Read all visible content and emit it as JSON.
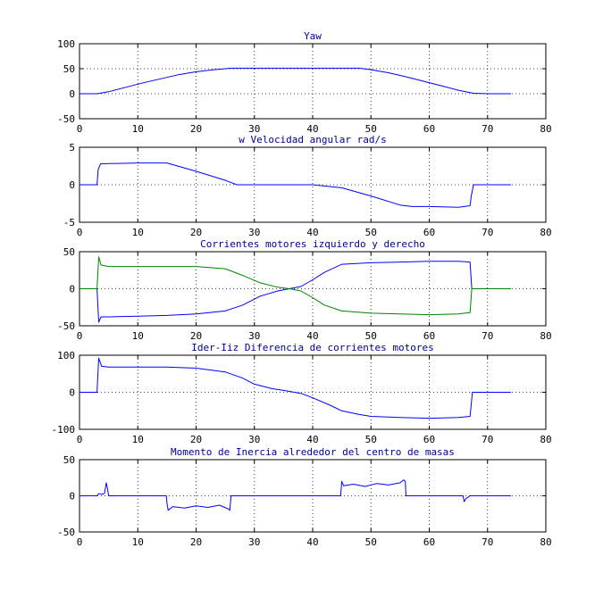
{
  "chart_data": [
    {
      "type": "line",
      "title": "Yaw",
      "xlabel": "",
      "ylabel": "",
      "xlim": [
        0,
        80
      ],
      "ylim": [
        -50,
        100
      ],
      "xticks": [
        0,
        10,
        20,
        30,
        40,
        50,
        60,
        70,
        80
      ],
      "yticks": [
        100,
        50,
        0,
        -50
      ],
      "grid": true,
      "series": [
        {
          "color": "#0000ff",
          "x": [
            0,
            3,
            5,
            8,
            11,
            14,
            17,
            20,
            23,
            26,
            28,
            30,
            35,
            40,
            45,
            48,
            50,
            53,
            56,
            59,
            62,
            65,
            67.5,
            70,
            74
          ],
          "y": [
            0,
            0,
            4,
            13,
            22,
            30,
            38,
            44,
            48,
            51,
            51,
            51,
            51,
            51,
            51,
            51,
            48,
            42,
            34,
            25,
            16,
            7,
            1,
            0,
            0
          ]
        }
      ]
    },
    {
      "type": "line",
      "title": "w Velocidad angular rad/s",
      "xlabel": "",
      "ylabel": "",
      "xlim": [
        0,
        80
      ],
      "ylim": [
        -5,
        5
      ],
      "xticks": [
        0,
        10,
        20,
        30,
        40,
        50,
        60,
        70,
        80
      ],
      "yticks": [
        5,
        0,
        -5
      ],
      "grid": true,
      "series": [
        {
          "color": "#0000ff",
          "x": [
            0,
            3,
            3.2,
            3.6,
            10,
            15,
            20,
            25,
            27,
            30,
            35,
            40,
            45,
            50,
            55,
            57,
            60,
            65,
            67,
            67.2,
            67.6,
            70,
            74
          ],
          "y": [
            0,
            0,
            2,
            2.8,
            2.9,
            2.9,
            1.8,
            0.6,
            0,
            0,
            0,
            0,
            -0.4,
            -1.5,
            -2.7,
            -2.9,
            -2.9,
            -3,
            -2.8,
            -1.5,
            0,
            0,
            0
          ]
        }
      ]
    },
    {
      "type": "line",
      "title": "Corrientes motores izquierdo y derecho",
      "xlabel": "",
      "ylabel": "",
      "xlim": [
        0,
        80
      ],
      "ylim": [
        -50,
        50
      ],
      "xticks": [
        0,
        10,
        20,
        30,
        40,
        50,
        60,
        70,
        80
      ],
      "yticks": [
        50,
        0,
        -50
      ],
      "grid": true,
      "series": [
        {
          "color": "#0000ff",
          "x": [
            0,
            3,
            3.3,
            3.7,
            5,
            10,
            15,
            20,
            25,
            28,
            31,
            34,
            36,
            38,
            40,
            42,
            45,
            50,
            55,
            60,
            65,
            67,
            67.3,
            68,
            74
          ],
          "y": [
            0,
            0,
            -45,
            -38,
            -38,
            -37,
            -36,
            -34,
            -30,
            -22,
            -10,
            -3,
            0,
            3,
            12,
            22,
            33,
            35,
            36,
            37,
            37,
            36,
            0,
            0,
            0
          ]
        },
        {
          "color": "#008000",
          "x": [
            0,
            3,
            3.3,
            3.7,
            5,
            10,
            15,
            20,
            25,
            28,
            31,
            34,
            36,
            38,
            40,
            42,
            45,
            50,
            55,
            60,
            65,
            67,
            67.3,
            68,
            74
          ],
          "y": [
            0,
            0,
            43,
            32,
            30,
            30,
            30,
            30,
            27,
            18,
            8,
            2,
            0,
            -3,
            -12,
            -22,
            -30,
            -33,
            -34,
            -35,
            -34,
            -32,
            0,
            0,
            0
          ]
        }
      ]
    },
    {
      "type": "line",
      "title": "Ider-Iiz Diferencia de corrientes motores",
      "xlabel": "",
      "ylabel": "",
      "xlim": [
        0,
        80
      ],
      "ylim": [
        -100,
        100
      ],
      "xticks": [
        0,
        10,
        20,
        30,
        40,
        50,
        60,
        70,
        80
      ],
      "yticks": [
        100,
        0,
        -100
      ],
      "grid": true,
      "series": [
        {
          "color": "#0000ff",
          "x": [
            0,
            3,
            3.3,
            3.8,
            5,
            10,
            15,
            20,
            25,
            28,
            30,
            33,
            35,
            38,
            40,
            43,
            45,
            48,
            50,
            55,
            60,
            65,
            67,
            67.4,
            68,
            74
          ],
          "y": [
            0,
            0,
            92,
            70,
            68,
            68,
            68,
            65,
            55,
            38,
            22,
            10,
            5,
            -3,
            -15,
            -35,
            -50,
            -60,
            -65,
            -68,
            -70,
            -68,
            -65,
            0,
            0,
            0
          ]
        }
      ]
    },
    {
      "type": "line",
      "title": "Momento de Inercia alrededor del centro de masas",
      "xlabel": "",
      "ylabel": "",
      "xlim": [
        0,
        80
      ],
      "ylim": [
        -50,
        50
      ],
      "xticks": [
        0,
        10,
        20,
        30,
        40,
        50,
        60,
        70,
        80
      ],
      "yticks": [
        50,
        0,
        -50
      ],
      "grid": true,
      "series": [
        {
          "color": "#0000ff",
          "x": [
            0,
            3,
            3.3,
            4,
            4.3,
            4.6,
            4.8,
            5,
            14.9,
            15,
            15.2,
            16,
            18,
            20,
            22,
            24,
            25.5,
            25.8,
            26,
            44.8,
            45,
            45.3,
            47,
            49,
            51,
            53,
            55,
            55.6,
            55.9,
            56,
            65.8,
            66,
            66.3,
            67,
            74
          ],
          "y": [
            0,
            0,
            3,
            2,
            4,
            18,
            10,
            0,
            0,
            -10,
            -20,
            -15,
            -17,
            -14,
            -16,
            -13,
            -18,
            -20,
            0,
            0,
            20,
            14,
            16,
            13,
            17,
            15,
            18,
            22,
            20,
            0,
            0,
            -8,
            -4,
            0,
            0
          ]
        }
      ]
    }
  ]
}
